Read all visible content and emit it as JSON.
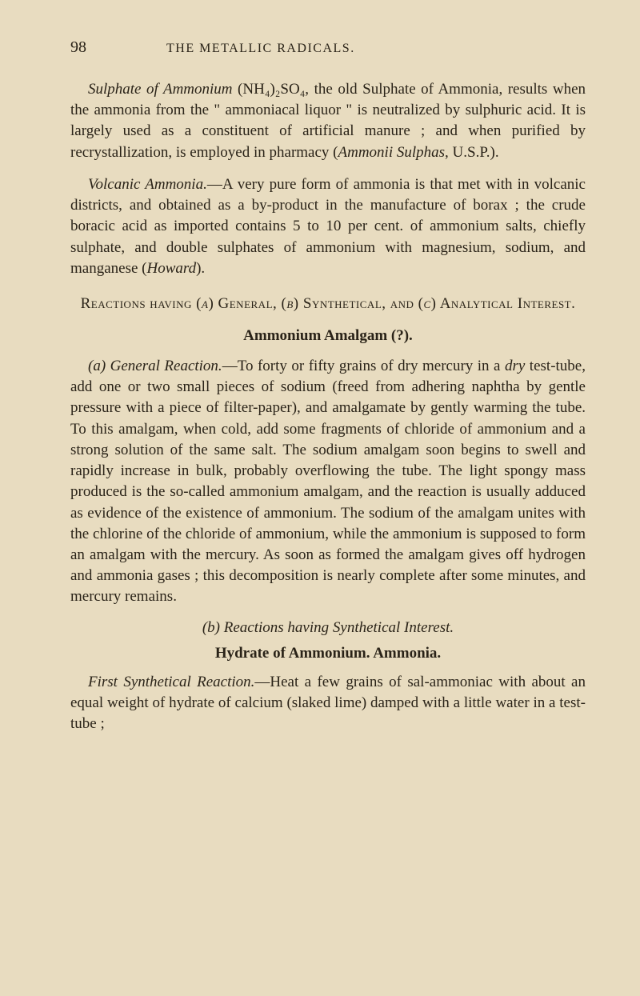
{
  "header": {
    "page_number": "98",
    "running_title": "THE METALLIC RADICALS."
  },
  "paragraphs": {
    "p1_prefix": "Sulphate of Ammonium",
    "p1_formula": " (NH₄)₂SO₄, ",
    "p1_body": "the old Sulphate of Ammonia, results when the ammonia from the \" ammoniacal liquor \" is neutralized by sulphuric acid. It is largely used as a constituent of artificial manure ; and when purified by recrystallization, is employed in pharmacy (",
    "p1_ital2": "Ammonii Sulphas",
    "p1_tail": ", U.S.P.).",
    "p2_prefix": "Volcanic Ammonia.",
    "p2_body": "—A very pure form of ammonia is that met with in volcanic districts, and obtained as a by-product in the manufacture of borax ; the crude boracic acid as imported contains 5 to 10 per cent. of ammonium salts, chiefly sulphate, and double sulphates of ammonium with magnesium, sodium, and manganese (",
    "p2_ital2": "Howard",
    "p2_tail": ")."
  },
  "section": {
    "heading_a": "Reactions having (",
    "heading_a_ital": "a",
    "heading_b": ") General, (",
    "heading_b_ital": "b",
    "heading_c": ") Synthetical, and (",
    "heading_c_ital": "c",
    "heading_d": ") Analytical Interest."
  },
  "amalgam": {
    "title": "Ammonium Amalgam (?)."
  },
  "general_reaction": {
    "label": "(a) General Reaction.",
    "body1": "—To forty or fifty grains of dry mercury in a ",
    "ital1": "dry",
    "body2": " test-tube, add one or two small pieces of sodium (freed from adhering naphtha by gentle pressure with a piece of filter-paper), and amalgamate by gently warming the tube. To this amalgam, when cold, add some fragments of chloride of ammonium and a strong solution of the same salt. The sodium amalgam soon begins to swell and rapidly increase in bulk, probably overflowing the tube. The light spongy mass produced is the so-called ammonium amalgam, and the reaction is usually adduced as evidence of the existence of ammonium. The sodium of the amalgam unites with the chlorine of the chloride of ammonium, while the ammonium is supposed to form an amalgam with the mercury. As soon as formed the amalgam gives off hydrogen and ammonia gases ; this decomposition is nearly complete after some minutes, and mercury remains."
  },
  "reactions_b": {
    "title": "(b) Reactions having Synthetical Interest."
  },
  "hydrate": {
    "title": "Hydrate of Ammonium. Ammonia."
  },
  "first_synthetical": {
    "label": "First Synthetical Reaction.",
    "body": "—Heat a few grains of sal-ammoniac with about an equal weight of hydrate of calcium (slaked lime) damped with a little water in a test-tube ;"
  },
  "style": {
    "background_color": "#e8dcc0",
    "text_color": "#2a2318",
    "body_fontsize": 19,
    "header_fontsize_page": 20,
    "header_fontsize_title": 16,
    "line_height": 1.38
  }
}
